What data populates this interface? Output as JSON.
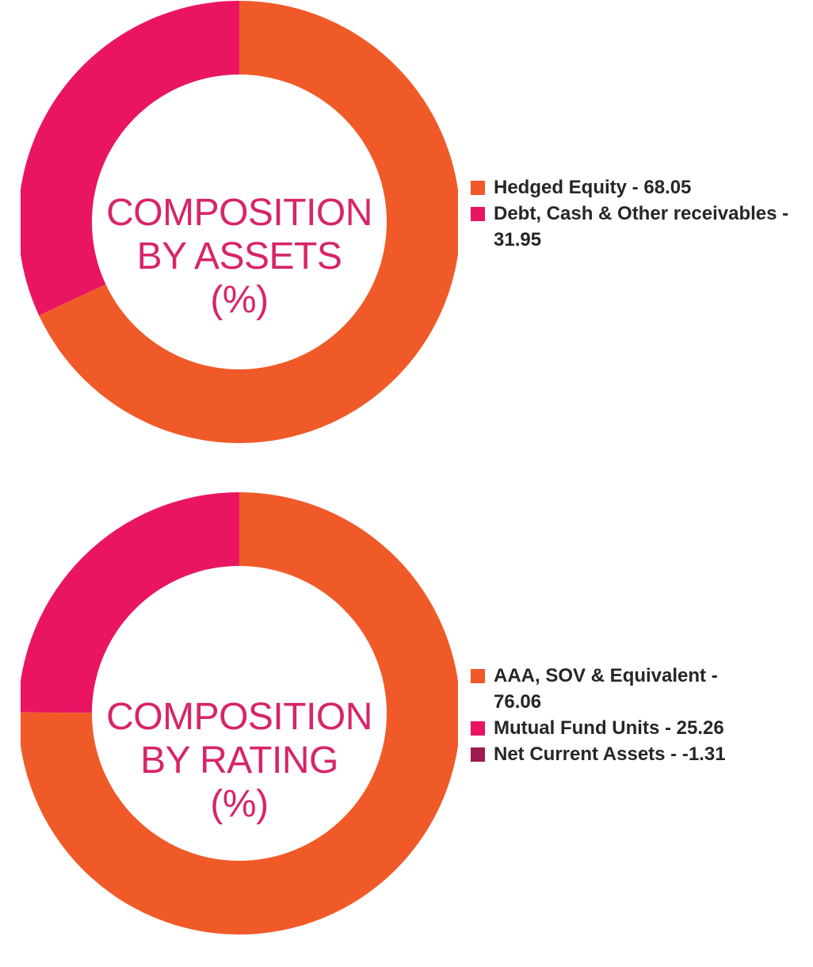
{
  "chart_data": [
    {
      "type": "donut",
      "title_lines": [
        "COMPOSITION",
        "BY ASSETS",
        "(%)"
      ],
      "segments": [
        {
          "label": "Hedged Equity",
          "value": 68.05,
          "color": "#f05a28"
        },
        {
          "label": "Debt, Cash & Other receivables",
          "value": 31.95,
          "color": "#e91563"
        }
      ],
      "legend": [
        {
          "text": "Hedged Equity - 68.05",
          "color": "#f05a28"
        },
        {
          "text": "Debt, Cash & Other receivables - 31.95",
          "color": "#e91563"
        }
      ],
      "legend_position": "right"
    },
    {
      "type": "donut",
      "title_lines": [
        "COMPOSITION",
        "BY RATING",
        "(%)"
      ],
      "segments": [
        {
          "label": "AAA, SOV & Equivalent",
          "value": 76.06,
          "color": "#f05a28"
        },
        {
          "label": "Mutual Fund Units",
          "value": 25.26,
          "color": "#e91563"
        },
        {
          "label": "Net Current Assets",
          "value": -1.31,
          "color": "#9e1b4f"
        }
      ],
      "legend": [
        {
          "text": "AAA, SOV & Equivalent - 76.06",
          "color": "#f05a28"
        },
        {
          "text": "Mutual Fund Units - 25.26",
          "color": "#e91563"
        },
        {
          "text": "Net Current Assets - -1.31",
          "color": "#9e1b4f"
        }
      ],
      "legend_position": "right"
    }
  ],
  "colors": {
    "title_text": "#d7246a",
    "legend_text": "#262626"
  }
}
